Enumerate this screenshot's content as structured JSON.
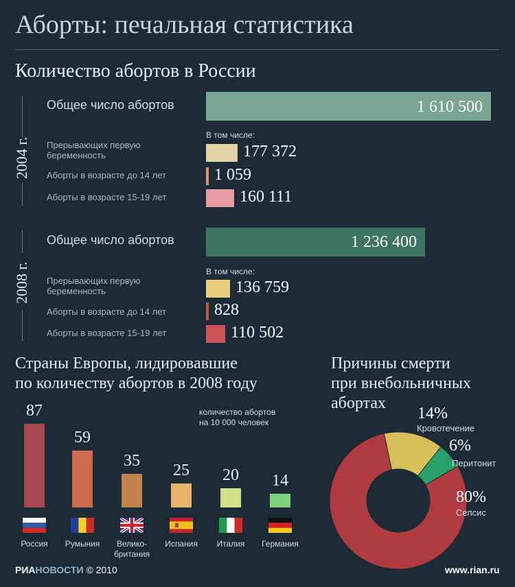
{
  "header": {
    "title": "Аборты: печальная статистика"
  },
  "russia": {
    "heading": "Количество абортов в России",
    "includes_label": "В том числе:",
    "blocks": [
      {
        "year": "2004 г.",
        "rows": [
          {
            "label": "Общее число абортов",
            "value": 1610500,
            "display": "1 610 500",
            "color": "#7aa592"
          },
          {
            "label": "Прерывающих первую беременность",
            "value": 177372,
            "display": "177 372",
            "color": "#e3d3a6"
          },
          {
            "label": "Аборты в возрасте до 14 лет",
            "value": 1059,
            "display": "1 059",
            "color": "#e39070"
          },
          {
            "label": "Аборты в возрасте 15-19 лет",
            "value": 160111,
            "display": "160 111",
            "color": "#e59ca4"
          }
        ]
      },
      {
        "year": "2008 г.",
        "rows": [
          {
            "label": "Общее число  абортов",
            "value": 1236400,
            "display": "1 236 400",
            "color": "#3c7560"
          },
          {
            "label": "Прерывающих первую беременность",
            "value": 136759,
            "display": "136 759",
            "color": "#e6cf7e"
          },
          {
            "label": "Аборты в возрасте до 14 лет",
            "value": 828,
            "display": "828",
            "color": "#c0583a"
          },
          {
            "label": "Аборты в возрасте 15-19 лет",
            "value": 110502,
            "display": "110 502",
            "color": "#cc5559"
          }
        ]
      }
    ]
  },
  "europe": {
    "heading_line1": "Страны Европы, лидировавшие",
    "heading_line2": "по количеству абортов в 2008 году",
    "note_line1": "количество абортов",
    "note_line2": "на 10 000 человек"
  },
  "causes": {
    "heading_line1": "Причины смерти",
    "heading_line2": "при внебольничных",
    "heading_line3": "абортах"
  },
  "chart_data": [
    {
      "type": "bar",
      "title": "Количество абортов в России",
      "categories": [
        "Общее число абортов",
        "Прерывающих первую беременность",
        "Аборты в возрасте до 14 лет",
        "Аборты в возрасте 15-19 лет"
      ],
      "series": [
        {
          "name": "2004 г.",
          "values": [
            1610500,
            177372,
            1059,
            160111
          ]
        },
        {
          "name": "2008 г.",
          "values": [
            1236400,
            136759,
            828,
            110502
          ]
        }
      ]
    },
    {
      "type": "bar",
      "title": "Страны Европы, лидировавшие по количеству абортов в 2008 году",
      "ylabel": "количество абортов на 10 000 человек",
      "categories": [
        "Россия",
        "Румыния",
        "Велико-британия",
        "Испания",
        "Италия",
        "Германия"
      ],
      "values": [
        87,
        59,
        35,
        25,
        20,
        14
      ],
      "colors": [
        "#a8484e",
        "#cf6a4f",
        "#c2814a",
        "#e8b36a",
        "#d3e18a",
        "#7ed37c"
      ],
      "countries": [
        {
          "label": "Россия",
          "value": "87",
          "flag": "russia-flag"
        },
        {
          "label": "Румыния",
          "value": "59",
          "flag": "romania-flag"
        },
        {
          "label": "Велико-\nбритания",
          "value": "35",
          "flag": "uk-flag"
        },
        {
          "label": "Испания",
          "value": "25",
          "flag": "spain-flag"
        },
        {
          "label": "Италия",
          "value": "20",
          "flag": "italy-flag"
        },
        {
          "label": "Германия",
          "value": "14",
          "flag": "germany-flag"
        }
      ]
    },
    {
      "type": "pie",
      "title": "Причины смерти при внебольничных абортах",
      "categories": [
        "Кровотечение",
        "Перитонит",
        "Сепсис"
      ],
      "values": [
        14,
        6,
        80
      ],
      "labels": [
        "14%",
        "6%",
        "80%"
      ],
      "colors": [
        "#d6bf58",
        "#2aa06a",
        "#b03b40"
      ]
    }
  ],
  "footer": {
    "logo_ria": "РИА",
    "logo_novosti": "НОВОСТИ",
    "copyright": "© 2010",
    "site": "www.rian.ru"
  }
}
